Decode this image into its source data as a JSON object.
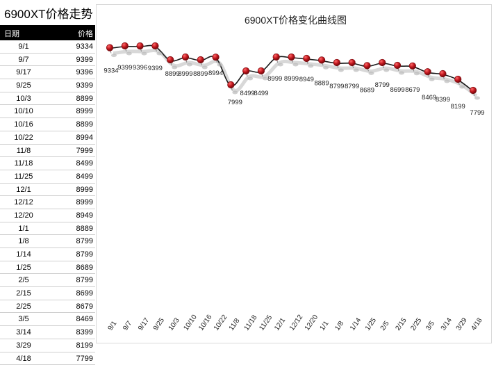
{
  "sheet": {
    "title": "6900XT价格走势",
    "col_date": "日期",
    "col_price": "价格"
  },
  "table": [
    {
      "date": "9/1",
      "price": "9334"
    },
    {
      "date": "9/7",
      "price": "9399"
    },
    {
      "date": "9/17",
      "price": "9396"
    },
    {
      "date": "9/25",
      "price": "9399"
    },
    {
      "date": "10/3",
      "price": "8899"
    },
    {
      "date": "10/10",
      "price": "8999"
    },
    {
      "date": "10/16",
      "price": "8899"
    },
    {
      "date": "10/22",
      "price": "8994"
    },
    {
      "date": "11/8",
      "price": "7999"
    },
    {
      "date": "11/18",
      "price": "8499"
    },
    {
      "date": "11/25",
      "price": "8499"
    },
    {
      "date": "12/1",
      "price": "8999"
    },
    {
      "date": "12/12",
      "price": "8999"
    },
    {
      "date": "12/20",
      "price": "8949"
    },
    {
      "date": "1/1",
      "price": "8889"
    },
    {
      "date": "1/8",
      "price": "8799"
    },
    {
      "date": "1/14",
      "price": "8799"
    },
    {
      "date": "1/25",
      "price": "8689"
    },
    {
      "date": "2/5",
      "price": "8799"
    },
    {
      "date": "2/15",
      "price": "8699"
    },
    {
      "date": "2/25",
      "price": "8679"
    },
    {
      "date": "3/5",
      "price": "8469"
    },
    {
      "date": "3/14",
      "price": "8399"
    },
    {
      "date": "3/29",
      "price": "8199"
    },
    {
      "date": "4/18",
      "price": "7799"
    }
  ],
  "chart_data": {
    "type": "line",
    "title": "6900XT价格变化曲线图",
    "categories": [
      "9/1",
      "9/7",
      "9/17",
      "9/25",
      "10/3",
      "10/10",
      "10/16",
      "10/22",
      "11/8",
      "11/18",
      "11/25",
      "12/1",
      "12/12",
      "12/20",
      "1/1",
      "1/8",
      "1/14",
      "1/25",
      "2/5",
      "2/15",
      "2/25",
      "3/5",
      "3/14",
      "3/29",
      "4/18"
    ],
    "series": [
      {
        "values": [
          9334,
          9399,
          9396,
          9399,
          8899,
          8999,
          8899,
          8994,
          7999,
          8499,
          8499,
          8999,
          8999,
          8949,
          8889,
          8799,
          8799,
          8689,
          8799,
          8699,
          8679,
          8469,
          8399,
          8199,
          7799
        ]
      }
    ],
    "data_labels": [
      "9334",
      "9399",
      "9396",
      "9399",
      "8899",
      "8999",
      "8899",
      "8994",
      "7999",
      "8499",
      "8499",
      "8999",
      "8999",
      "8949",
      "8889",
      "8799",
      "8799",
      "8689",
      "8799",
      "8699",
      "8679",
      "8469",
      "8399",
      "8199",
      "7799"
    ],
    "ylim": [
      7200,
      9500
    ],
    "xlabel": "",
    "ylabel": "",
    "grid": false,
    "legend": "none",
    "colors": {
      "line": "#1a1a1a",
      "marker": "#c0161d",
      "marker_edge": "#7a0a0e",
      "shadow": "#c8c8c8"
    }
  }
}
